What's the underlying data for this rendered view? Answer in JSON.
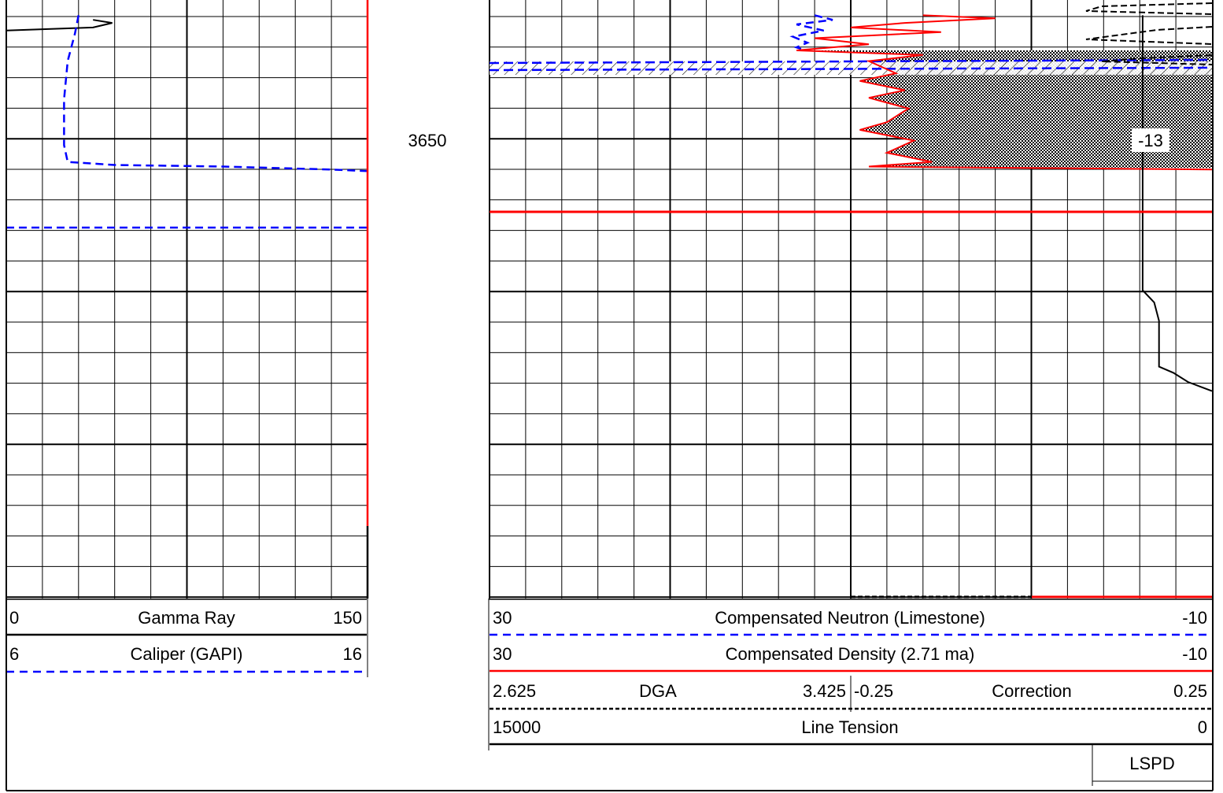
{
  "depth_label": "3650",
  "shading_label": "-13",
  "legend": {
    "gamma_ray": {
      "min": "0",
      "name": "Gamma Ray",
      "max": "150",
      "color": "#000000"
    },
    "caliper": {
      "min": "6",
      "name": "Caliper (GAPI)",
      "max": "16",
      "color": "#0000ff"
    },
    "neutron": {
      "min": "30",
      "name": "Compensated Neutron (Limestone)",
      "max": "-10",
      "color": "#0000ff"
    },
    "density": {
      "min": "30",
      "name": "Compensated Density (2.71 ma)",
      "max": "-10",
      "color": "#ff0000"
    },
    "dga": {
      "min": "2.625",
      "name": "DGA",
      "max": "3.425",
      "color": "#000000"
    },
    "correction": {
      "min": "-0.25",
      "name": "Correction",
      "max": "0.25",
      "color": "#000000"
    },
    "line_tension": {
      "min": "15000",
      "name": "Line Tension",
      "max": "0",
      "color": "#000000"
    },
    "lspd": {
      "name": "LSPD"
    }
  },
  "chart_data": {
    "type": "line",
    "title": "",
    "tracks": [
      {
        "name": "track-1",
        "series": [
          {
            "name": "Gamma Ray",
            "scale": [
              0,
              150
            ],
            "color": "#000000",
            "style": "solid",
            "points": [
              [
                36,
                3642.3
              ],
              [
                44,
                3642.5
              ],
              [
                36,
                3642.8
              ],
              [
                0,
                3643.0
              ]
            ]
          },
          {
            "name": "Caliper (GAPI)",
            "scale": [
              6,
              16
            ],
            "color": "#0000ff",
            "style": "dashed",
            "points": [
              [
                8.0,
                3642.0
              ],
              [
                7.9,
                3643.2
              ],
              [
                7.7,
                3645.0
              ],
              [
                7.6,
                3647.5
              ],
              [
                7.6,
                3650.5
              ],
              [
                7.7,
                3651.6
              ],
              [
                9.0,
                3651.8
              ],
              [
                12.0,
                3651.9
              ],
              [
                15.0,
                3652.1
              ],
              [
                16.0,
                3652.2
              ]
            ]
          }
        ]
      },
      {
        "name": "track-2",
        "series": [
          {
            "name": "Compensated Neutron (Limestone)",
            "scale": [
              30,
              -10
            ],
            "color": "#0000ff",
            "style": "dashed",
            "points": [
              [
                12.0,
                3642.0
              ],
              [
                11.0,
                3642.3
              ],
              [
                13.0,
                3642.6
              ],
              [
                11.5,
                3643.0
              ],
              [
                13.2,
                3643.4
              ],
              [
                12.4,
                3643.8
              ],
              [
                13.0,
                3644.1
              ],
              [
                12.5,
                3644.3
              ]
            ]
          },
          {
            "name": "Compensated Density (2.71 ma)",
            "scale": [
              30,
              -10
            ],
            "color": "#ff0000",
            "style": "solid",
            "points": [
              [
                6.0,
                3642.0
              ],
              [
                2.0,
                3642.2
              ],
              [
                7.0,
                3642.5
              ],
              [
                10.0,
                3642.8
              ],
              [
                5.0,
                3643.1
              ],
              [
                12.0,
                3643.5
              ],
              [
                9.0,
                3643.9
              ],
              [
                13.0,
                3644.3
              ],
              [
                6.0,
                3644.6
              ],
              [
                9.0,
                3645.0
              ],
              [
                7.5,
                3645.8
              ],
              [
                9.5,
                3646.3
              ],
              [
                7.0,
                3646.9
              ],
              [
                9.0,
                3647.4
              ],
              [
                6.8,
                3648.1
              ],
              [
                8.0,
                3649.0
              ],
              [
                9.5,
                3649.5
              ],
              [
                6.5,
                3650.2
              ],
              [
                8.0,
                3651.0
              ],
              [
                5.5,
                3651.6
              ],
              [
                9.0,
                3651.9
              ],
              [
                -10.0,
                3652.1
              ]
            ]
          },
          {
            "name": "Line Tension",
            "scale": [
              15000,
              0
            ],
            "color": "#000000",
            "style": "solid",
            "points": [
              [
                1440,
                3642.0
              ],
              [
                1440,
                3660.0
              ],
              [
                1200,
                3660.8
              ],
              [
                1100,
                3662.0
              ],
              [
                1100,
                3665.0
              ],
              [
                800,
                3665.4
              ],
              [
                500,
                3666.0
              ],
              [
                0,
                3666.6
              ]
            ]
          }
        ],
        "shading": {
          "label": "-13",
          "from_depth": 3644.3,
          "to_depth": 3652.0
        }
      }
    ],
    "depth_ticks": [
      3650
    ]
  }
}
